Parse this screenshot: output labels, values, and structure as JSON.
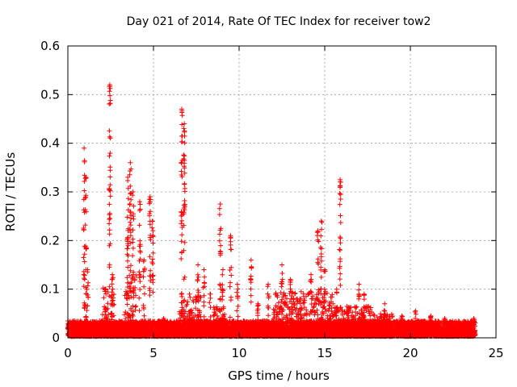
{
  "chart_data": {
    "type": "scatter",
    "title": "Day 021 of 2014, Rate Of TEC Index for receiver tow2",
    "xlabel": "GPS time / hours",
    "ylabel": "ROTI / TECUs",
    "xlim": [
      0,
      25
    ],
    "ylim": [
      0,
      0.6
    ],
    "xticks": [
      0,
      5,
      10,
      15,
      20,
      25
    ],
    "yticks": [
      0,
      0.1,
      0.2,
      0.3,
      0.4,
      0.5,
      0.6
    ],
    "grid": true,
    "marker": "+",
    "color": "#ff0000",
    "baseline": {
      "x_start": 0,
      "x_end": 23.8,
      "min": 0.003,
      "max": 0.035
    },
    "spikes": [
      {
        "x": 0.95,
        "peak": 0.39
      },
      {
        "x": 1.05,
        "peak": 0.33
      },
      {
        "x": 1.15,
        "peak": 0.14
      },
      {
        "x": 2.2,
        "peak": 0.1
      },
      {
        "x": 2.45,
        "peak": 0.52
      },
      {
        "x": 2.6,
        "peak": 0.13
      },
      {
        "x": 3.5,
        "peak": 0.33
      },
      {
        "x": 3.65,
        "peak": 0.36
      },
      {
        "x": 3.8,
        "peak": 0.3
      },
      {
        "x": 4.2,
        "peak": 0.28
      },
      {
        "x": 4.45,
        "peak": 0.16
      },
      {
        "x": 4.8,
        "peak": 0.29
      },
      {
        "x": 4.95,
        "peak": 0.24
      },
      {
        "x": 5.6,
        "peak": 0.04
      },
      {
        "x": 6.65,
        "peak": 0.47
      },
      {
        "x": 6.8,
        "peak": 0.44
      },
      {
        "x": 7.1,
        "peak": 0.09
      },
      {
        "x": 7.6,
        "peak": 0.15
      },
      {
        "x": 7.95,
        "peak": 0.14
      },
      {
        "x": 8.3,
        "peak": 0.09
      },
      {
        "x": 8.9,
        "peak": 0.275
      },
      {
        "x": 9.05,
        "peak": 0.14
      },
      {
        "x": 9.5,
        "peak": 0.21
      },
      {
        "x": 9.9,
        "peak": 0.11
      },
      {
        "x": 10.7,
        "peak": 0.16
      },
      {
        "x": 11.1,
        "peak": 0.07
      },
      {
        "x": 11.7,
        "peak": 0.11
      },
      {
        "x": 12.5,
        "peak": 0.15
      },
      {
        "x": 13.0,
        "peak": 0.12
      },
      {
        "x": 13.6,
        "peak": 0.08
      },
      {
        "x": 14.2,
        "peak": 0.13
      },
      {
        "x": 14.6,
        "peak": 0.22
      },
      {
        "x": 14.8,
        "peak": 0.24
      },
      {
        "x": 15.0,
        "peak": 0.14
      },
      {
        "x": 15.7,
        "peak": 0.1
      },
      {
        "x": 15.9,
        "peak": 0.325
      },
      {
        "x": 16.4,
        "peak": 0.06
      },
      {
        "x": 17.0,
        "peak": 0.11
      },
      {
        "x": 17.3,
        "peak": 0.09
      },
      {
        "x": 18.5,
        "peak": 0.07
      },
      {
        "x": 19.5,
        "peak": 0.045
      },
      {
        "x": 20.3,
        "peak": 0.055
      },
      {
        "x": 21.2,
        "peak": 0.045
      },
      {
        "x": 22.0,
        "peak": 0.04
      },
      {
        "x": 23.7,
        "peak": 0.04
      }
    ],
    "bands": [
      {
        "x_start": 2.0,
        "x_end": 2.7,
        "max": 0.1
      },
      {
        "x_start": 3.3,
        "x_end": 4.0,
        "max": 0.14
      },
      {
        "x_start": 6.5,
        "x_end": 7.8,
        "max": 0.08
      },
      {
        "x_start": 8.5,
        "x_end": 9.2,
        "max": 0.06
      },
      {
        "x_start": 12.0,
        "x_end": 15.5,
        "max": 0.09
      },
      {
        "x_start": 15.5,
        "x_end": 17.8,
        "max": 0.06
      },
      {
        "x_start": 17.8,
        "x_end": 19.0,
        "max": 0.045
      }
    ]
  }
}
